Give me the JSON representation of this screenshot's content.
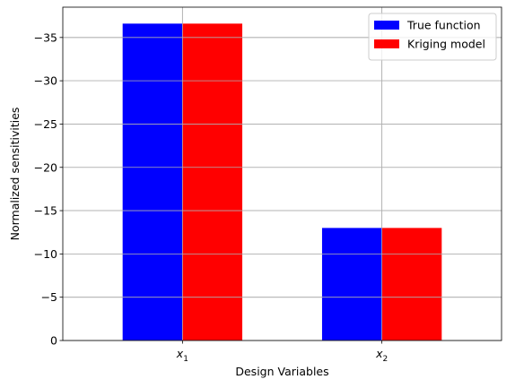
{
  "chart_data": {
    "type": "bar",
    "title": "",
    "xlabel": "Design Variables",
    "ylabel": "Normalized sensitivities",
    "categories": [
      {
        "base": "x",
        "sub": "1"
      },
      {
        "base": "x",
        "sub": "2"
      }
    ],
    "series": [
      {
        "name": "True function",
        "color": "#0000ff",
        "values": [
          -36.6,
          -13.0
        ]
      },
      {
        "name": "Kriging model",
        "color": "#ff0000",
        "values": [
          -36.6,
          -13.0
        ]
      }
    ],
    "ylim": [
      0,
      -38.5
    ],
    "y_inverted": true,
    "yticks": [
      0,
      -5,
      -10,
      -15,
      -20,
      -25,
      -30,
      -35
    ],
    "ytick_labels": [
      "0",
      "−5",
      "−10",
      "−15",
      "−20",
      "−25",
      "−30",
      "−35"
    ],
    "grid": true,
    "legend_position": "top-right"
  }
}
